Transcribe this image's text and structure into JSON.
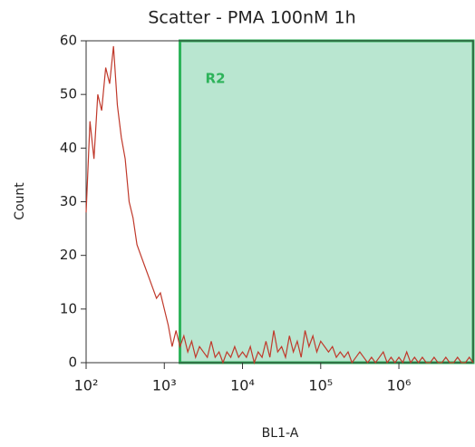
{
  "chart_data": {
    "type": "line",
    "title": "Scatter - PMA 100nM 1h",
    "x_label": "BL1-A",
    "y_label": "Count",
    "x_scale": "log",
    "color": "#c0392b",
    "x": [
      100,
      112,
      126,
      141,
      158,
      178,
      200,
      224,
      251,
      282,
      316,
      355,
      398,
      447,
      501,
      562,
      631,
      708,
      794,
      891,
      1000,
      1122,
      1259,
      1413,
      1585,
      1778,
      1995,
      2239,
      2512,
      2818,
      3162,
      3548,
      3981,
      4467,
      5012,
      5623,
      6310,
      7079,
      7943,
      8913,
      10000,
      11220,
      12589,
      14125,
      15849,
      17783,
      19953,
      22387,
      25119,
      28184,
      31623,
      35481,
      39811,
      44668,
      50119,
      56234,
      63096,
      70795,
      79433,
      89125,
      100000,
      112202,
      125893,
      141254,
      158489,
      177828,
      199526,
      223872,
      251189,
      281838,
      316228,
      354813,
      398107,
      446684,
      501187,
      562341,
      630957,
      707946,
      794328,
      891251,
      1000000,
      1122018,
      1258925,
      1412538,
      1584893,
      1778279,
      1995262,
      2238721,
      2511886,
      2818383,
      3162278,
      3548134,
      3981072,
      4466836,
      5011872,
      5623413,
      6309573,
      7079458,
      7943282,
      8912509
    ],
    "values": [
      28,
      45,
      38,
      50,
      47,
      55,
      52,
      59,
      48,
      42,
      38,
      30,
      27,
      22,
      20,
      18,
      16,
      14,
      12,
      13,
      10,
      7,
      3,
      6,
      3,
      5,
      2,
      4,
      1,
      3,
      2,
      1,
      4,
      1,
      2,
      0,
      2,
      1,
      3,
      1,
      2,
      1,
      3,
      0,
      2,
      1,
      4,
      1,
      6,
      2,
      3,
      1,
      5,
      2,
      4,
      1,
      6,
      3,
      5,
      2,
      4,
      3,
      2,
      3,
      1,
      2,
      1,
      2,
      0,
      1,
      2,
      1,
      0,
      1,
      0,
      1,
      2,
      0,
      1,
      0,
      1,
      0,
      2,
      0,
      1,
      0,
      1,
      0,
      0,
      1,
      0,
      0,
      1,
      0,
      0,
      1,
      0,
      0,
      1,
      0
    ],
    "xlim": [
      100,
      8912509
    ],
    "ylim": [
      0,
      60
    ],
    "xticks": [
      {
        "value": 100,
        "label": "10²"
      },
      {
        "value": 1000,
        "label": "10³"
      },
      {
        "value": 10000,
        "label": "10⁴"
      },
      {
        "value": 100000,
        "label": "10⁵"
      },
      {
        "value": 1000000,
        "label": "10⁶"
      }
    ],
    "yticks": [
      0,
      10,
      20,
      30,
      40,
      50,
      60
    ],
    "regions": [
      {
        "label": "R2",
        "xlim": [
          1585,
          8912509
        ],
        "fill": "#b9e6d0",
        "edge": "#2db35a"
      }
    ]
  }
}
